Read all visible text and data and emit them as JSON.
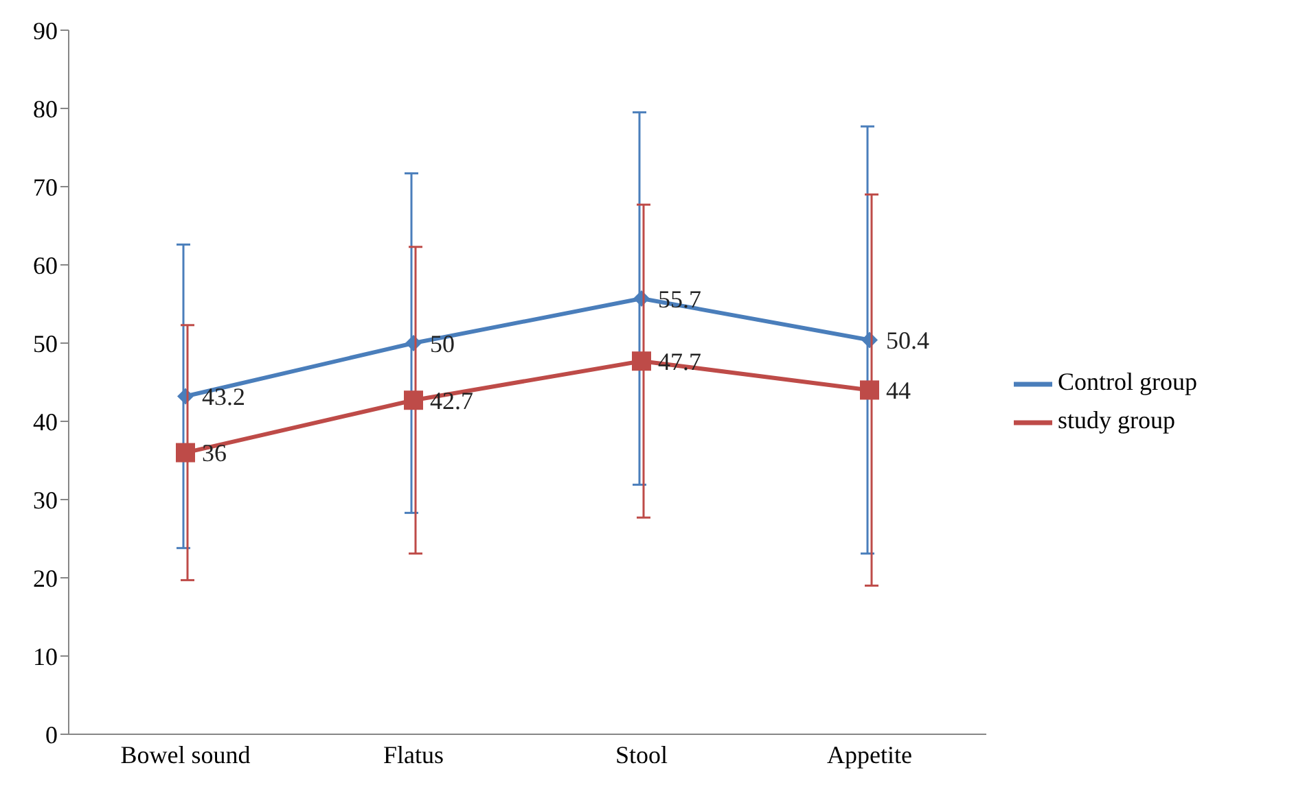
{
  "chart_data": {
    "type": "line",
    "categories": [
      "Bowel sound",
      "Flatus",
      "Stool",
      "Appetite"
    ],
    "series": [
      {
        "name": "Control group",
        "color": "#4a7ebb",
        "values": [
          43.2,
          50,
          55.7,
          50.4
        ],
        "errors": [
          19.4,
          21.7,
          23.8,
          27.3
        ],
        "marker": "diamond"
      },
      {
        "name": "study group",
        "color": "#be4b48",
        "values": [
          36,
          42.7,
          47.7,
          44
        ],
        "errors": [
          16.3,
          19.6,
          20,
          25
        ],
        "marker": "square"
      }
    ],
    "ylim": [
      0,
      90
    ],
    "yticks": [
      0,
      10,
      20,
      30,
      40,
      50,
      60,
      70,
      80,
      90
    ],
    "legend": "right",
    "data_labels": true,
    "line_style": "solid"
  }
}
